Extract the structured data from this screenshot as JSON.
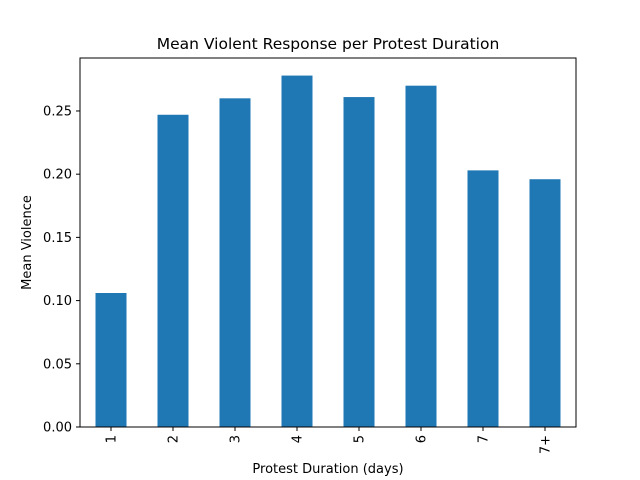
{
  "chart_data": {
    "type": "bar",
    "title": "Mean Violent Response per Protest Duration",
    "xlabel": "Protest Duration (days)",
    "ylabel": "Mean Violence",
    "categories": [
      "1",
      "2",
      "3",
      "4",
      "5",
      "6",
      "7",
      "7+"
    ],
    "values": [
      0.106,
      0.247,
      0.26,
      0.278,
      0.261,
      0.27,
      0.203,
      0.196
    ],
    "ylim": [
      0,
      0.2919
    ],
    "yticks": [
      0.0,
      0.05,
      0.1,
      0.15,
      0.2,
      0.25
    ],
    "ytick_labels": [
      "0.00",
      "0.05",
      "0.10",
      "0.15",
      "0.20",
      "0.25"
    ],
    "xtick_rotation": "vertical",
    "bar_color": "#1f77b4",
    "grid": false,
    "legend": "none"
  }
}
